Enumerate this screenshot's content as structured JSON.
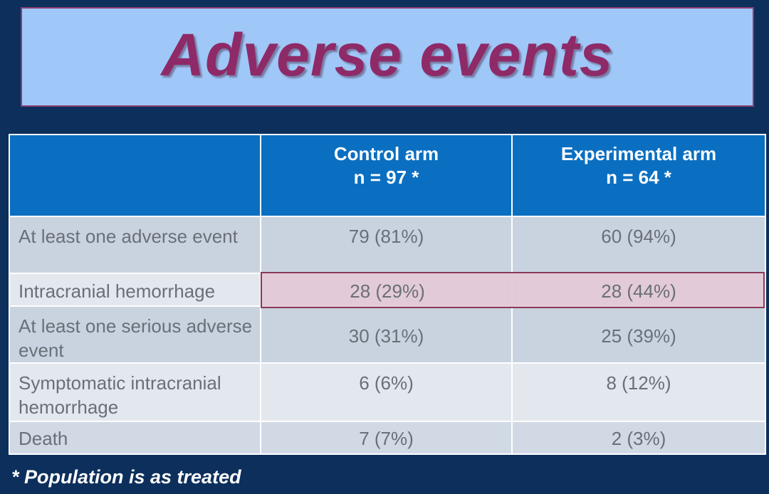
{
  "slide": {
    "title": "Adverse events",
    "footnote": "* Population is as treated"
  },
  "table": {
    "headers": [
      {
        "line1": "",
        "line2": ""
      },
      {
        "line1": "Control arm",
        "line2": "n = 97 *"
      },
      {
        "line1": "Experimental arm",
        "line2": "n = 64 *"
      }
    ],
    "rows": [
      {
        "label": "At least one adverse event",
        "control": "79 (81%)",
        "experimental": "60 (94%)"
      },
      {
        "label": "Intracranial hemorrhage",
        "control": "28 (29%)",
        "experimental": "28 (44%)"
      },
      {
        "label": "At least one serious adverse event",
        "control": "30 (31%)",
        "experimental": "25 (39%)"
      },
      {
        "label": "Symptomatic intracranial hemorrhage",
        "control": "6 (6%)",
        "experimental": "8 (12%)"
      },
      {
        "label": "Death",
        "control": "7 (7%)",
        "experimental": "2 (3%)"
      }
    ]
  },
  "colors": {
    "background": "#0d2f5c",
    "title_box": "#9fc8f8",
    "title_text": "#8e2a67",
    "header_fill": "#0a6fc1",
    "highlight_border": "#8a3a58"
  }
}
